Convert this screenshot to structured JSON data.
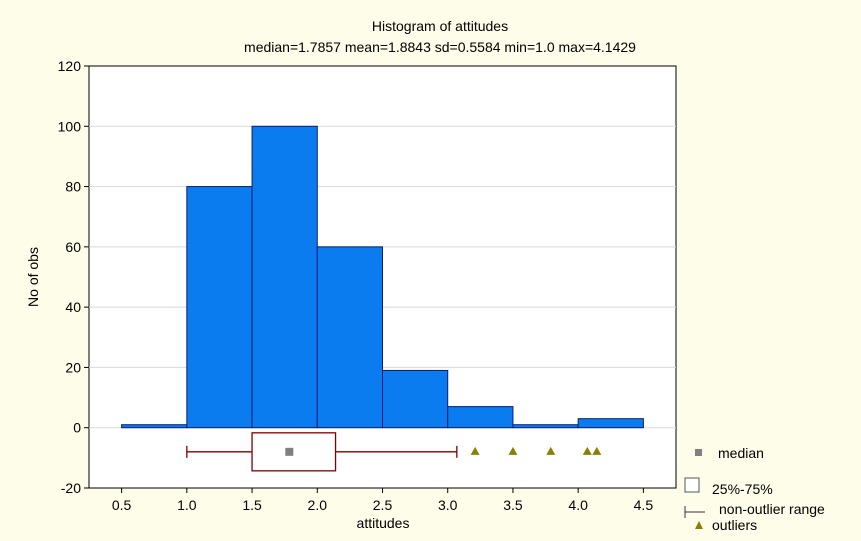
{
  "chart_data": {
    "type": "bar",
    "title": "Histogram of attitudes",
    "subtitle": "median=1.7857  mean=1.8843  sd=0.5584  min=1.0  max=4.1429",
    "xlabel": "attitudes",
    "ylabel": "No of obs",
    "xlim": [
      0.25,
      4.75
    ],
    "ylim": [
      -20,
      120
    ],
    "xticks": [
      "0.5",
      "1.0",
      "1.5",
      "2.0",
      "2.5",
      "3.0",
      "3.5",
      "4.0",
      "4.5"
    ],
    "yticks": [
      "-20",
      "0",
      "20",
      "40",
      "60",
      "80",
      "100",
      "120"
    ],
    "bins": [
      {
        "x0": 0.5,
        "x1": 1.0,
        "value": 1
      },
      {
        "x0": 1.0,
        "x1": 1.5,
        "value": 80
      },
      {
        "x0": 1.5,
        "x1": 2.0,
        "value": 100
      },
      {
        "x0": 2.0,
        "x1": 2.5,
        "value": 60
      },
      {
        "x0": 2.5,
        "x1": 3.0,
        "value": 19
      },
      {
        "x0": 3.0,
        "x1": 3.5,
        "value": 7
      },
      {
        "x0": 3.5,
        "x1": 4.0,
        "value": 1
      },
      {
        "x0": 4.0,
        "x1": 4.5,
        "value": 3
      }
    ],
    "boxplot": {
      "median": 1.7857,
      "q1": 1.5,
      "q3": 2.14,
      "whisker_low": 1.0,
      "whisker_high": 3.07,
      "outliers": [
        3.21,
        3.5,
        3.79,
        4.07,
        4.1429
      ]
    },
    "legend": {
      "position": "bottom-right",
      "items": [
        "median",
        "25%-75%",
        "non-outlier range",
        "outliers"
      ]
    },
    "grid": true,
    "colors": {
      "bar": "#0a7cf0",
      "bar_edge": "#0a1e70",
      "box": "#800000",
      "median_marker": "#808080",
      "outlier": "#8b8000",
      "background": "#fefde9",
      "plot_bg": "#ffffff"
    }
  }
}
